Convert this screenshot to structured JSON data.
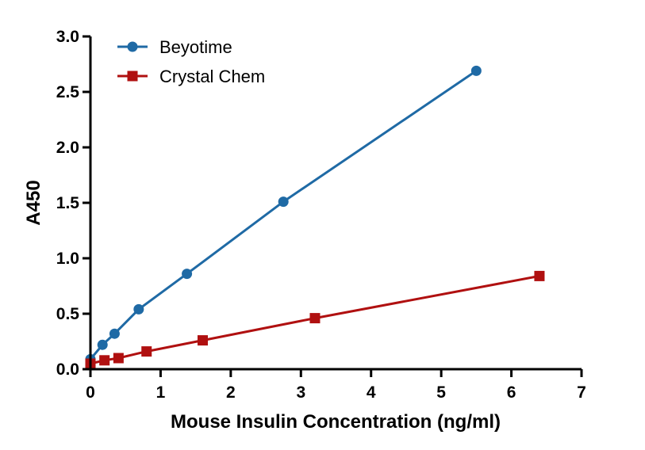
{
  "chart_data": {
    "type": "line",
    "xlabel": "Mouse Insulin Concentration (ng/ml)",
    "ylabel": "A450",
    "xlim": [
      0,
      7
    ],
    "ylim": [
      0,
      3.0
    ],
    "x_ticks": [
      "0",
      "1",
      "2",
      "3",
      "4",
      "5",
      "6",
      "7"
    ],
    "y_ticks": [
      "0.0",
      "0.5",
      "1.0",
      "1.5",
      "2.0",
      "2.5",
      "3.0"
    ],
    "grid": false,
    "legend_position": "top-left",
    "series": [
      {
        "name": "Beyotime",
        "color": "#1f6aa5",
        "marker": "circle",
        "x": [
          0,
          0.172,
          0.344,
          0.688,
          1.375,
          2.75,
          5.5
        ],
        "y": [
          0.09,
          0.22,
          0.32,
          0.54,
          0.86,
          1.51,
          2.69
        ]
      },
      {
        "name": "Crystal Chem",
        "color": "#b01010",
        "marker": "square",
        "x": [
          0,
          0.2,
          0.4,
          0.8,
          1.6,
          3.2,
          6.4
        ],
        "y": [
          0.05,
          0.08,
          0.1,
          0.16,
          0.26,
          0.46,
          0.84
        ]
      }
    ]
  }
}
